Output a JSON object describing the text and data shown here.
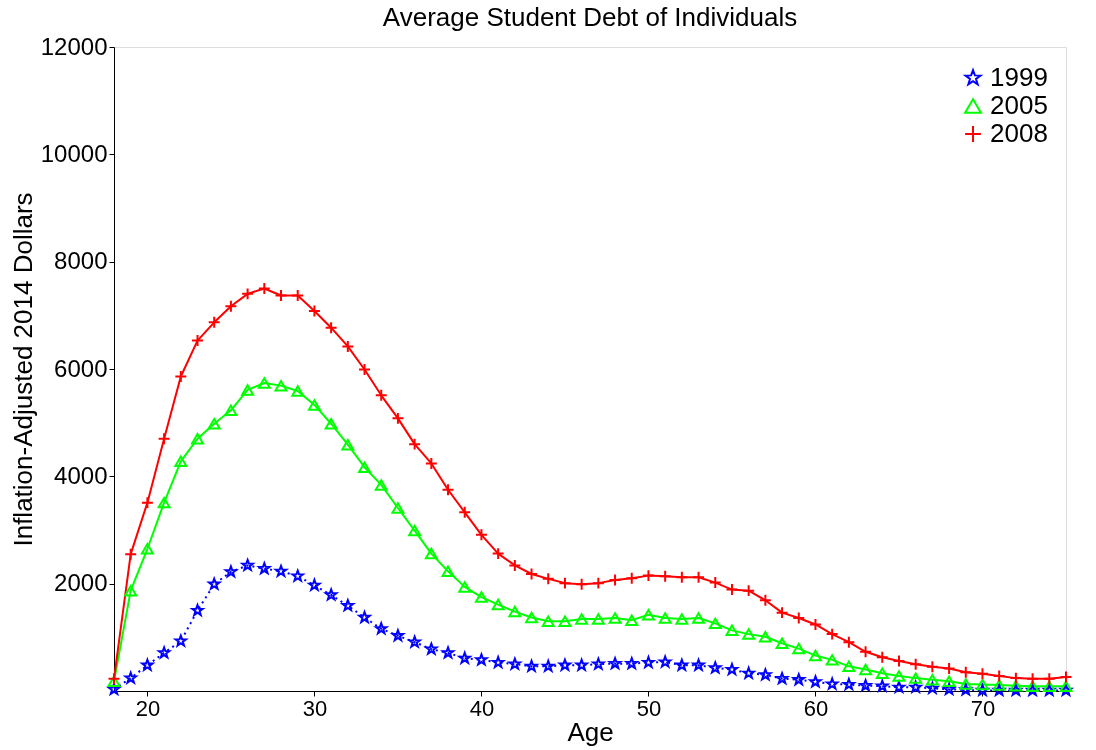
{
  "chart_data": {
    "type": "line",
    "title": "Average Student Debt of Individuals",
    "xlabel": "Age",
    "ylabel": "Inflation-Adjusted 2014 Dollars",
    "x": [
      18,
      19,
      20,
      21,
      22,
      23,
      24,
      25,
      26,
      27,
      28,
      29,
      30,
      31,
      32,
      33,
      34,
      35,
      36,
      37,
      38,
      39,
      40,
      41,
      42,
      43,
      44,
      45,
      46,
      47,
      48,
      49,
      50,
      51,
      52,
      53,
      54,
      55,
      56,
      57,
      58,
      59,
      60,
      61,
      62,
      63,
      64,
      65,
      66,
      67,
      68,
      69,
      70,
      71,
      72,
      73,
      74,
      75
    ],
    "xlim": [
      18,
      75
    ],
    "xticks": [
      20,
      30,
      40,
      50,
      60,
      70
    ],
    "ylim": [
      0,
      12000
    ],
    "yticks": [
      2000,
      4000,
      6000,
      8000,
      10000,
      12000
    ],
    "grid": false,
    "legend": "top right",
    "series": [
      {
        "name": "1999",
        "color": "#0000ff",
        "marker": "star",
        "line_style": "dotted",
        "values": [
          30,
          240,
          480,
          710,
          930,
          1500,
          1990,
          2220,
          2340,
          2280,
          2230,
          2140,
          1970,
          1790,
          1590,
          1370,
          1160,
          1030,
          910,
          780,
          710,
          610,
          580,
          530,
          500,
          460,
          460,
          480,
          480,
          500,
          510,
          510,
          530,
          540,
          480,
          480,
          430,
          400,
          330,
          300,
          230,
          210,
          170,
          130,
          120,
          100,
          90,
          70,
          70,
          50,
          30,
          20,
          10,
          10,
          10,
          10,
          10,
          10
        ]
      },
      {
        "name": "2005",
        "color": "#00ff00",
        "marker": "triangle",
        "line_style": "solid",
        "values": [
          180,
          1870,
          2650,
          3510,
          4280,
          4700,
          4980,
          5230,
          5610,
          5740,
          5690,
          5590,
          5330,
          4980,
          4590,
          4170,
          3840,
          3410,
          2990,
          2560,
          2230,
          1940,
          1750,
          1610,
          1480,
          1370,
          1300,
          1300,
          1340,
          1340,
          1360,
          1320,
          1420,
          1360,
          1340,
          1360,
          1260,
          1130,
          1060,
          1010,
          890,
          790,
          660,
          580,
          460,
          400,
          330,
          280,
          240,
          210,
          180,
          130,
          120,
          110,
          100,
          90,
          90,
          90
        ]
      },
      {
        "name": "2008",
        "color": "#ff0000",
        "marker": "cross",
        "line_style": "solid",
        "values": [
          230,
          2550,
          3510,
          4700,
          5860,
          6530,
          6870,
          7170,
          7400,
          7500,
          7370,
          7370,
          7080,
          6770,
          6420,
          5990,
          5510,
          5080,
          4600,
          4240,
          3750,
          3330,
          2910,
          2560,
          2340,
          2180,
          2090,
          2010,
          1990,
          2010,
          2070,
          2100,
          2150,
          2140,
          2120,
          2120,
          2020,
          1890,
          1870,
          1690,
          1460,
          1360,
          1240,
          1060,
          910,
          730,
          630,
          560,
          500,
          450,
          420,
          350,
          320,
          280,
          240,
          230,
          230,
          260
        ]
      }
    ]
  }
}
